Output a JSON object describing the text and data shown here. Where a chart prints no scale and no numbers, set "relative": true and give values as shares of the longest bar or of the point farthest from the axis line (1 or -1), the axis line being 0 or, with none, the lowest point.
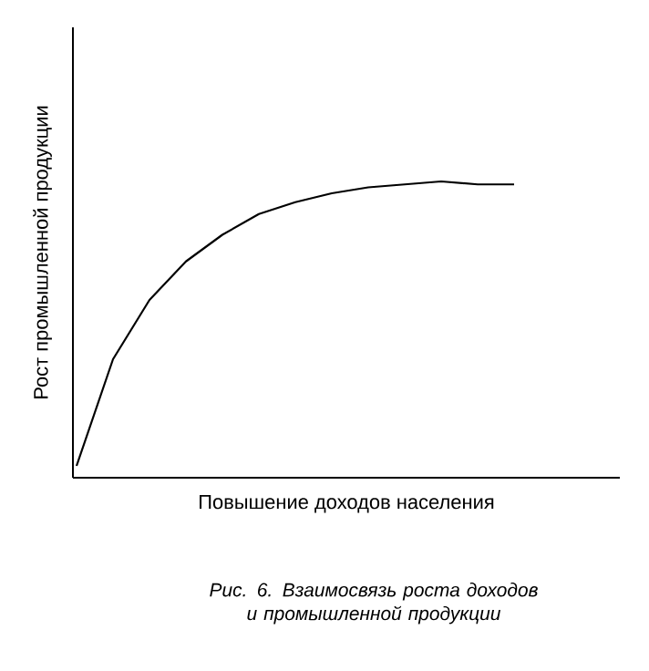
{
  "chart_data": {
    "type": "line",
    "relative": true,
    "xlabel": "Повышение доходов населения",
    "ylabel": "Рост промышленной продукции",
    "categories": [
      null,
      null,
      null,
      null,
      null,
      null,
      null,
      null,
      null,
      null,
      null,
      null,
      null
    ],
    "series": [
      {
        "color": "#000000",
        "values": [
          0.04,
          0.4,
          0.6,
          0.73,
          0.82,
          0.89,
          0.93,
          0.96,
          0.98,
          0.99,
          1,
          0.99,
          0.99
        ]
      }
    ],
    "annotations": [
      "Рис. 6. Взаимосвязь роста доходов и промышленной продукции"
    ]
  }
}
